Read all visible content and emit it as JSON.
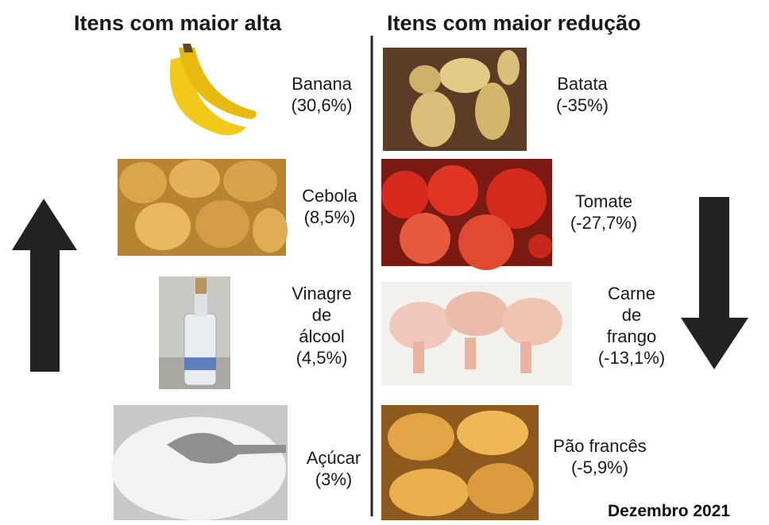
{
  "header": {
    "left_title": "Itens com maior alta",
    "right_title": "Itens com maior redução"
  },
  "left_items": [
    {
      "name": "Banana",
      "change": "(30,6%)"
    },
    {
      "name": "Cebola",
      "change": "(8,5%)"
    },
    {
      "name": "Vinagre de álcool",
      "change": "(4,5%)"
    },
    {
      "name": "Açúcar",
      "change": "(3%)"
    }
  ],
  "right_items": [
    {
      "name": "Batata",
      "change": "(-35%)"
    },
    {
      "name": "Tomate",
      "change": "(-27,7%)"
    },
    {
      "name": "Carne de frango",
      "change": "(-13,1%)"
    },
    {
      "name": "Pão francês",
      "change": "(-5,9%)"
    }
  ],
  "footer": "Dezembro 2021"
}
